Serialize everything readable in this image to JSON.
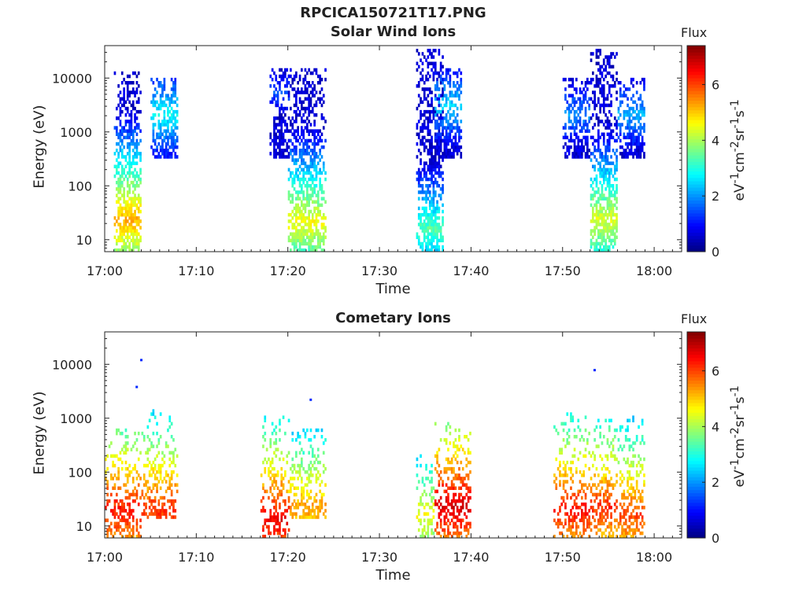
{
  "figure_title": "RPCICA150721T17.PNG",
  "chart_data": [
    {
      "type": "heatmap",
      "title": "Solar Wind Ions",
      "xlabel": "Time",
      "ylabel": "Energy (eV)",
      "yscale": "log",
      "x_ticks": [
        "17:00",
        "17:10",
        "17:20",
        "17:30",
        "17:40",
        "17:50",
        "18:00"
      ],
      "y_ticks": [
        "10",
        "100",
        "1000",
        "10000"
      ],
      "xlim": [
        "17:00",
        "18:03"
      ],
      "ylim": [
        6,
        40000
      ],
      "colorbar": {
        "title": "Flux",
        "label": "eV-1cm-2sr-1s-1",
        "ticks": [
          0,
          2,
          4,
          6
        ],
        "range": [
          0,
          7.4
        ]
      },
      "bursts": [
        {
          "start": "17:01",
          "end": "17:04",
          "e_low": 6,
          "e_high": 15000,
          "peak_energy": 22,
          "peak_flux": 5.2
        },
        {
          "start": "17:05",
          "end": "17:08",
          "e_low": 300,
          "e_high": 10000,
          "peak_energy": 2000,
          "peak_flux": 2.8
        },
        {
          "start": "17:18",
          "end": "17:20",
          "e_low": 300,
          "e_high": 14000,
          "peak_energy": 5000,
          "peak_flux": 1.5
        },
        {
          "start": "17:20",
          "end": "17:24",
          "e_low": 6,
          "e_high": 14000,
          "peak_energy": 20,
          "peak_flux": 4.6
        },
        {
          "start": "17:34",
          "end": "17:37",
          "e_low": 6,
          "e_high": 34000,
          "peak_energy": 15,
          "peak_flux": 3.4
        },
        {
          "start": "17:36",
          "end": "17:39",
          "e_low": 300,
          "e_high": 14000,
          "peak_energy": 3000,
          "peak_flux": 2.5
        },
        {
          "start": "17:50",
          "end": "17:53",
          "e_low": 300,
          "e_high": 10000,
          "peak_energy": 2000,
          "peak_flux": 2.0
        },
        {
          "start": "17:53",
          "end": "17:56",
          "e_low": 6,
          "e_high": 32000,
          "peak_energy": 22,
          "peak_flux": 4.4
        },
        {
          "start": "17:56",
          "end": "17:59",
          "e_low": 300,
          "e_high": 10000,
          "peak_energy": 2000,
          "peak_flux": 2.2
        }
      ]
    },
    {
      "type": "heatmap",
      "title": "Cometary Ions",
      "xlabel": "Time",
      "ylabel": "Energy (eV)",
      "yscale": "log",
      "x_ticks": [
        "17:00",
        "17:10",
        "17:20",
        "17:30",
        "17:40",
        "17:50",
        "18:00"
      ],
      "y_ticks": [
        "10",
        "100",
        "1000",
        "10000"
      ],
      "xlim": [
        "17:00",
        "18:03"
      ],
      "ylim": [
        6,
        40000
      ],
      "colorbar": {
        "title": "Flux",
        "label": "eV-1cm-2sr-1s-1",
        "ticks": [
          0,
          2,
          4,
          6
        ],
        "range": [
          0,
          7.4
        ]
      },
      "bursts": [
        {
          "start": "17:00",
          "end": "17:04",
          "e_low": 6,
          "e_high": 600,
          "peak_energy": 18,
          "peak_flux": 6.4
        },
        {
          "start": "17:04",
          "end": "17:08",
          "e_low": 12,
          "e_high": 1300,
          "peak_energy": 18,
          "peak_flux": 6.2
        },
        {
          "start": "17:17",
          "end": "17:20",
          "e_low": 6,
          "e_high": 1100,
          "peak_energy": 12,
          "peak_flux": 6.6
        },
        {
          "start": "17:20",
          "end": "17:24",
          "e_low": 12,
          "e_high": 600,
          "peak_energy": 20,
          "peak_flux": 5.4
        },
        {
          "start": "17:34",
          "end": "17:36",
          "e_low": 6,
          "e_high": 200,
          "peak_energy": 15,
          "peak_flux": 4.6
        },
        {
          "start": "17:36",
          "end": "17:40",
          "e_low": 6,
          "e_high": 800,
          "peak_energy": 22,
          "peak_flux": 6.8
        },
        {
          "start": "17:49",
          "end": "17:53",
          "e_low": 6,
          "e_high": 1200,
          "peak_energy": 18,
          "peak_flux": 6.4
        },
        {
          "start": "17:53",
          "end": "17:56",
          "e_low": 6,
          "e_high": 900,
          "peak_energy": 20,
          "peak_flux": 6.2
        },
        {
          "start": "17:56",
          "end": "17:59",
          "e_low": 6,
          "e_high": 1100,
          "peak_energy": 15,
          "peak_flux": 6.0
        }
      ],
      "outliers": [
        {
          "time": "17:04",
          "energy": 12000,
          "flux": 1.2
        },
        {
          "time": "17:03.5",
          "energy": 3800,
          "flux": 1.2
        },
        {
          "time": "17:22.5",
          "energy": 2200,
          "flux": 1.2
        },
        {
          "time": "17:53.5",
          "energy": 7800,
          "flux": 1.2
        }
      ]
    }
  ]
}
